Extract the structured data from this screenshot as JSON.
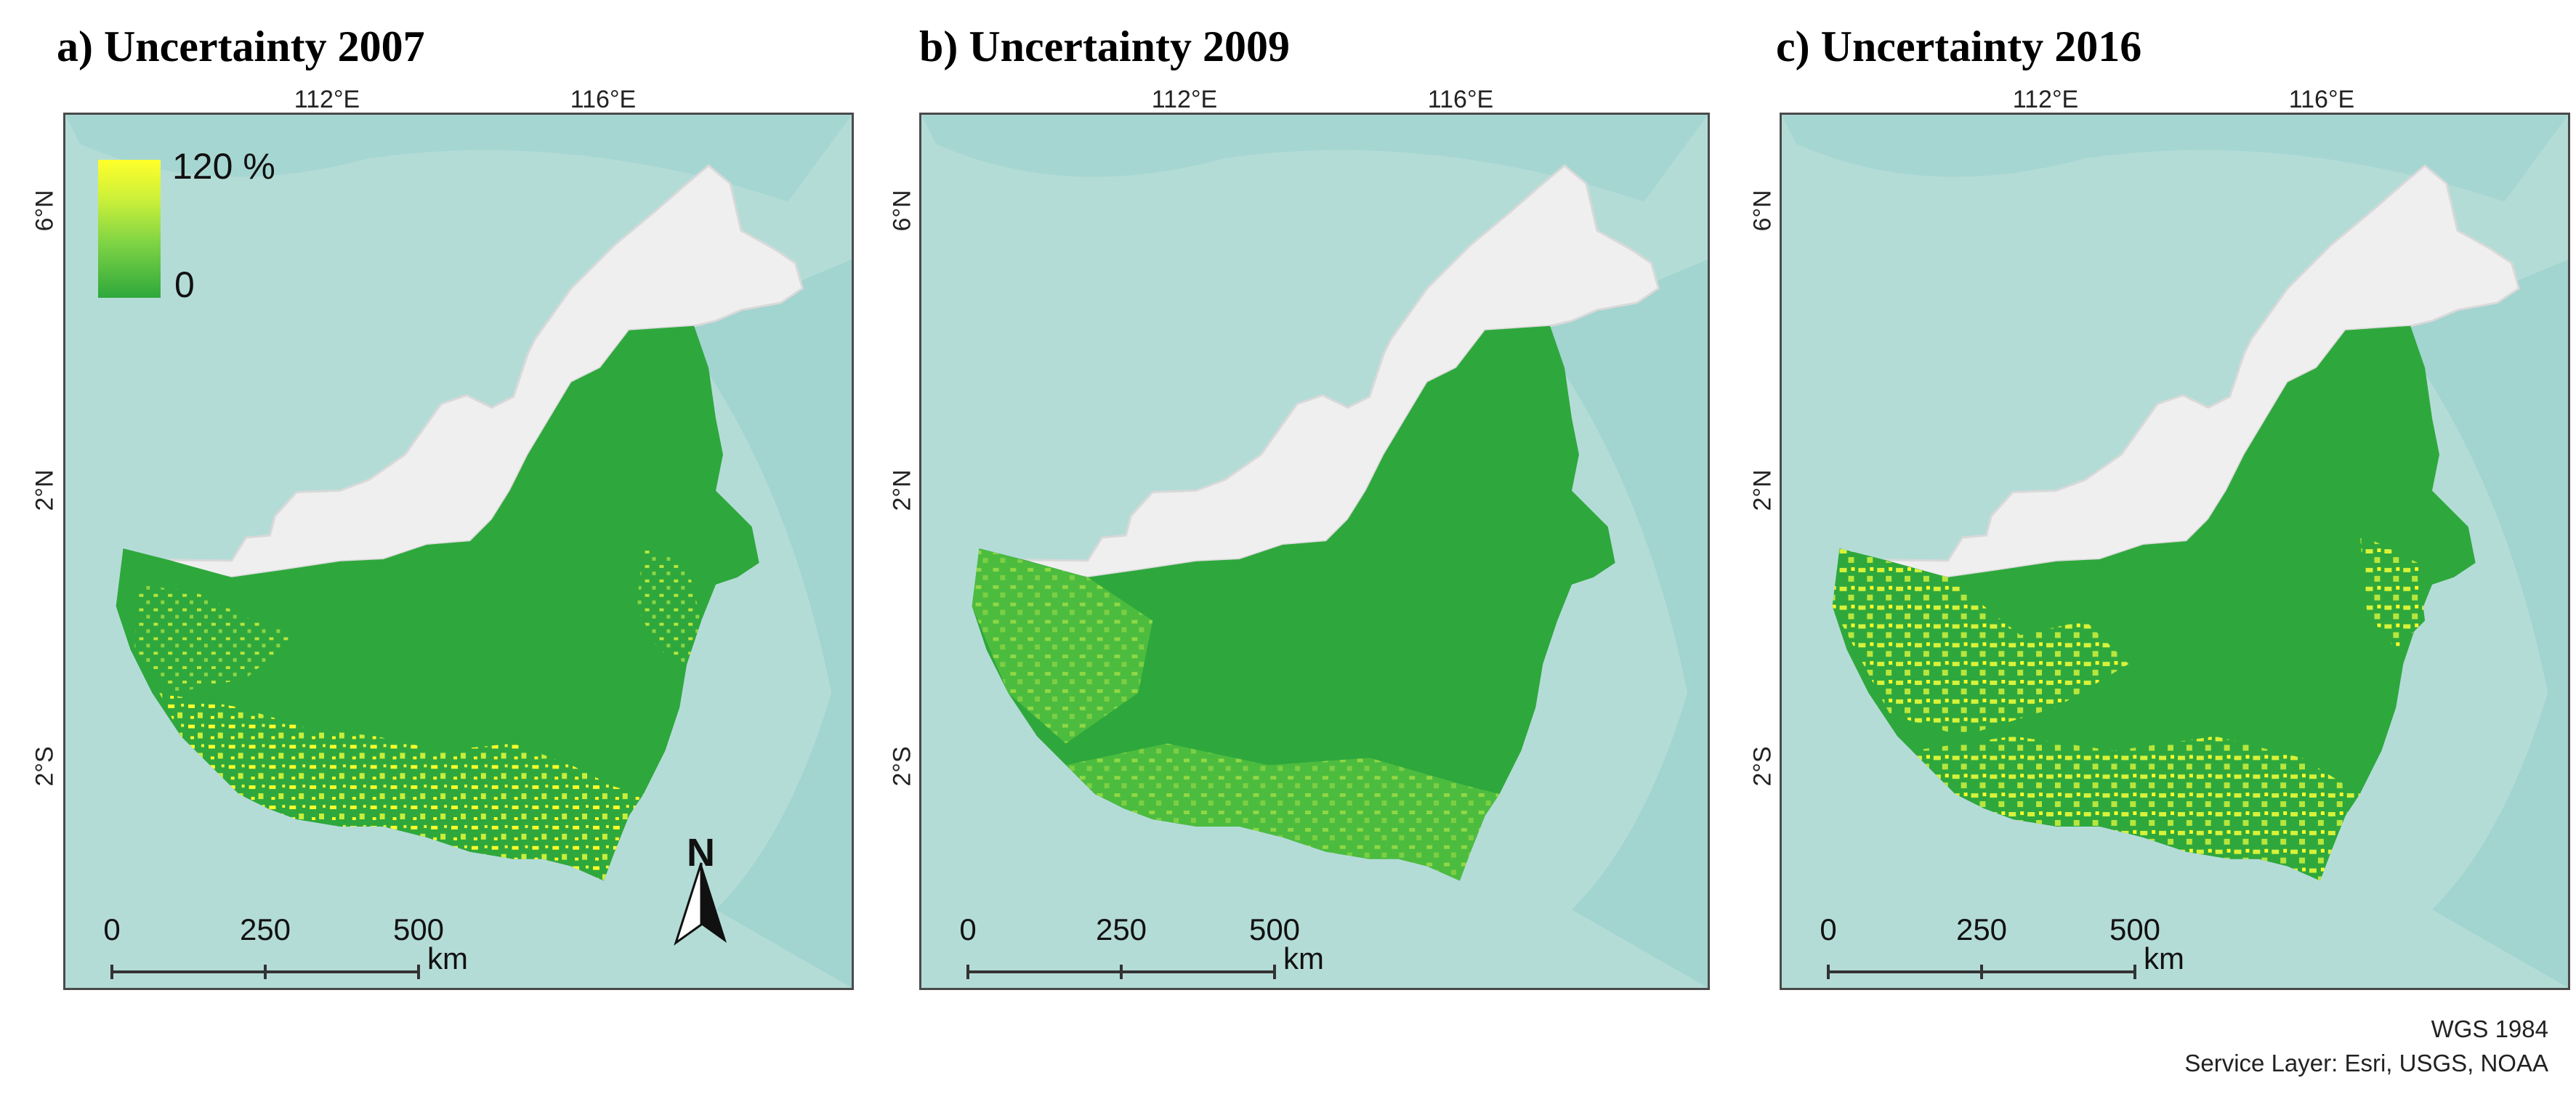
{
  "panels": [
    {
      "title": "a) Uncertainty 2007"
    },
    {
      "title": "b) Uncertainty 2009"
    },
    {
      "title": "c) Uncertainty 2016"
    }
  ],
  "axes": {
    "lon_labels": [
      "112°E",
      "116°E"
    ],
    "lat_labels": [
      "6°N",
      "2°N",
      "2°S"
    ]
  },
  "legend": {
    "max_label": "120 %",
    "min_label": "0",
    "colors": [
      "#ffff2a",
      "#2ea83c"
    ]
  },
  "scale_bar": {
    "ticks": [
      "0",
      "250",
      "500"
    ],
    "unit": "km"
  },
  "north_arrow": {
    "label": "N"
  },
  "credits": {
    "datum": "WGS 1984",
    "service": "Service Layer: Esri, USGS, NOAA"
  },
  "colors": {
    "sea": "#b4dcd7",
    "land": "#efefef",
    "forest": "#2ea83c",
    "uncertainty_high": "#ffff2a"
  }
}
